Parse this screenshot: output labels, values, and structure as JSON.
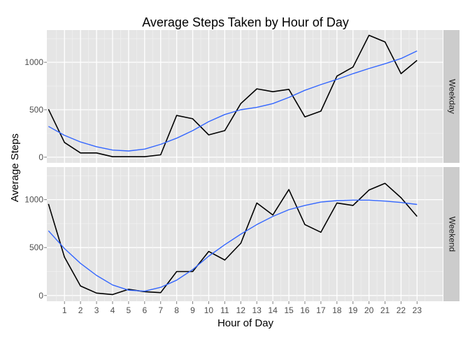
{
  "chart_data": {
    "type": "line",
    "title": "Average Steps Taken by Hour of Day",
    "xlabel": "Hour of Day",
    "ylabel": "Average Steps",
    "x_ticks": [
      1,
      2,
      3,
      4,
      5,
      6,
      7,
      8,
      9,
      10,
      11,
      12,
      13,
      14,
      15,
      16,
      17,
      18,
      19,
      20,
      21,
      22,
      23
    ],
    "x": [
      0,
      1,
      2,
      3,
      4,
      5,
      6,
      7,
      8,
      9,
      10,
      11,
      12,
      13,
      14,
      15,
      16,
      17,
      18,
      19,
      20,
      21,
      22,
      23
    ],
    "xlim": [
      -0.1,
      24.6
    ],
    "ylim": [
      -60,
      1340
    ],
    "y_ticks": [
      0,
      500,
      1000
    ],
    "grid": true,
    "colors": {
      "panel_bg": "#E5E5E5",
      "strip_bg": "#CCCCCC",
      "grid": "#FFFFFF",
      "observed_line": "#000000",
      "smooth_line": "#3366FF",
      "axis_text": "#4D4D4D"
    },
    "panels": [
      {
        "strip_label": "Weekday",
        "series": [
          {
            "values": [
              505,
              155,
              45,
              45,
              5,
              5,
              5,
              25,
              440,
              405,
              235,
              280,
              565,
              720,
              690,
              715,
              425,
              485,
              855,
              950,
              1285,
              1215,
              880,
              1020
            ]
          },
          {
            "values": [
              325,
              230,
              160,
              110,
              75,
              65,
              85,
              135,
              200,
              280,
              375,
              450,
              500,
              525,
              565,
              630,
              705,
              765,
              820,
              880,
              935,
              985,
              1040,
              1120
            ]
          }
        ]
      },
      {
        "strip_label": "Weekend",
        "series": [
          {
            "values": [
              955,
              400,
              100,
              25,
              10,
              65,
              40,
              30,
              250,
              250,
              460,
              370,
              545,
              965,
              840,
              1105,
              740,
              660,
              965,
              940,
              1100,
              1170,
              1020,
              825
            ]
          },
          {
            "values": [
              675,
              490,
              335,
              210,
              110,
              55,
              45,
              85,
              160,
              270,
              410,
              530,
              640,
              740,
              825,
              895,
              940,
              975,
              990,
              995,
              995,
              985,
              970,
              950
            ]
          }
        ]
      }
    ]
  }
}
